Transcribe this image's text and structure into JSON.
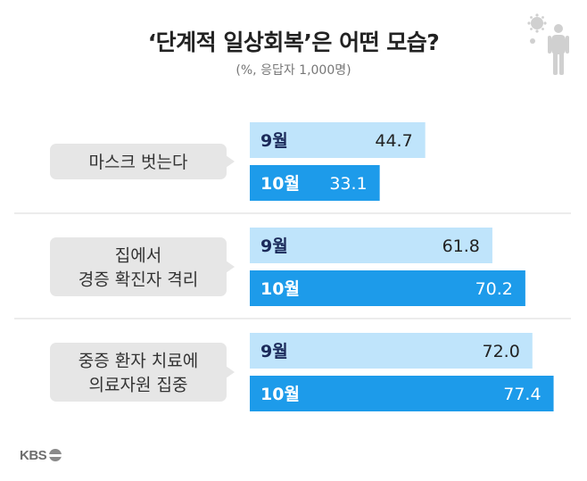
{
  "title": "‘단계적 일상회복’은 어떤 모습?",
  "subtitle": "(%, 응답자 1,000명)",
  "brand": "KBS",
  "colors": {
    "september": "#bfe4fb",
    "october": "#1d9bea",
    "label_box": "#e6e6e6",
    "divider": "#d9d9d9"
  },
  "chart_data": {
    "type": "bar",
    "orientation": "horizontal",
    "title": "‘단계적 일상회복’은 어떤 모습?",
    "subtitle": "(%, 응답자 1,000명)",
    "categories": [
      [
        "마스크 벗는다"
      ],
      [
        "집에서",
        "경증 확진자 격리"
      ],
      [
        "중증 환자 치료에",
        "의료자원 집중"
      ]
    ],
    "series": [
      {
        "name": "9월",
        "values": [
          44.7,
          61.8,
          72.0
        ],
        "labels": [
          "44.7",
          "61.8",
          "72.0"
        ],
        "color": "#bfe4fb",
        "text_color": "#222222"
      },
      {
        "name": "10월",
        "values": [
          33.1,
          70.2,
          77.4
        ],
        "labels": [
          "33.1",
          "70.2",
          "77.4"
        ],
        "color": "#1d9bea",
        "text_color": "#ffffff"
      }
    ],
    "xlim": [
      0,
      100
    ],
    "grid": false,
    "legend": "none"
  }
}
